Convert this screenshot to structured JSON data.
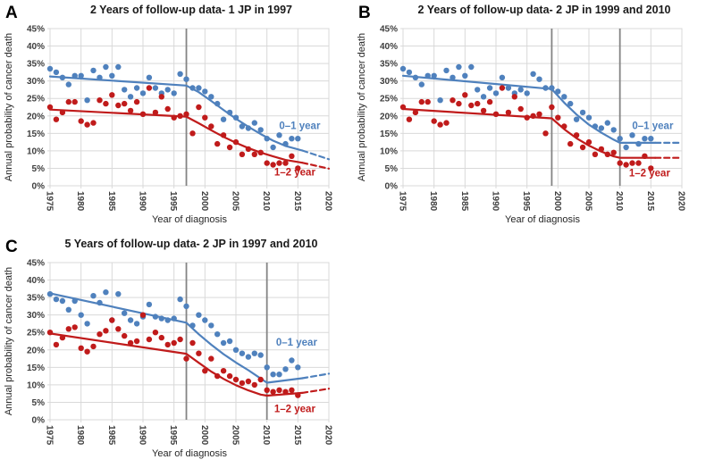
{
  "figure": {
    "y_axis_label": "Annual probability of cancer death",
    "x_axis_label": "Year of diagnosis"
  },
  "colors": {
    "blue": "#4f81bd",
    "red": "#c01b1b",
    "grid": "#d9d9d9",
    "joinpoint": "#848484",
    "tick_text": "#3d3d3d"
  },
  "chart_data": [
    {
      "type": "scatter",
      "panel": "A",
      "title": "2 Years of follow-up data- 1 JP in 1997",
      "xlabel": "Year of diagnosis",
      "ylabel": "Annual probability of cancer death",
      "xlim": [
        1975,
        2020
      ],
      "ylim": [
        0,
        45
      ],
      "x_ticks": [
        1975,
        1980,
        1985,
        1990,
        1995,
        2000,
        2005,
        2010,
        2015,
        2020
      ],
      "y_ticks": {
        "values": [
          45,
          40,
          35,
          30,
          25,
          20,
          15,
          10,
          5,
          0
        ],
        "labels": [
          "45%",
          "40%",
          "35%",
          "30%",
          "25%",
          "20%",
          "15%",
          "10%",
          "5%",
          "0%"
        ]
      },
      "joinpoint_years": [
        1997
      ],
      "years": [
        1975,
        1976,
        1977,
        1978,
        1979,
        1980,
        1981,
        1982,
        1983,
        1984,
        1985,
        1986,
        1987,
        1988,
        1989,
        1990,
        1991,
        1992,
        1993,
        1994,
        1995,
        1996,
        1997,
        1998,
        1999,
        2000,
        2001,
        2002,
        2003,
        2004,
        2005,
        2006,
        2007,
        2008,
        2009,
        2010,
        2011,
        2012,
        2013,
        2014,
        2015
      ],
      "series": [
        {
          "name": "0–1 year",
          "color_key": "blue",
          "values": [
            33.5,
            32.5,
            31,
            29,
            31.5,
            31.5,
            24.5,
            33,
            31,
            34,
            31.5,
            34,
            27.5,
            25.5,
            28,
            26.5,
            31,
            28,
            26.5,
            27.5,
            26.5,
            32,
            30.5,
            28,
            28,
            27,
            25.5,
            23.5,
            19,
            21,
            19.5,
            17,
            16.5,
            18,
            16,
            13.5,
            11,
            14.5,
            12,
            13.5,
            13.5
          ]
        },
        {
          "name": "1–2 year",
          "color_key": "red",
          "values": [
            22.5,
            19,
            21,
            24,
            24,
            18.5,
            17.5,
            18,
            24.5,
            23.5,
            26,
            23,
            23.5,
            21.5,
            24,
            20.5,
            28,
            21,
            25.5,
            22,
            19.5,
            20,
            20.5,
            15,
            22.5,
            19.5,
            17,
            12,
            14.5,
            11,
            12.5,
            9,
            10.5,
            9,
            9.5,
            6.5,
            6,
            6.5,
            6.5,
            8.5,
            5
          ]
        }
      ],
      "trend_segments": [
        {
          "series": "0–1 year",
          "color_key": "blue",
          "style": "solid",
          "points": [
            [
              1975,
              31.3
            ],
            [
              1997,
              28.7
            ],
            [
              1999,
              26.8
            ],
            [
              2001,
              24.3
            ],
            [
              2003,
              21.7
            ],
            [
              2005,
              19.2
            ],
            [
              2007,
              16.9
            ],
            [
              2009,
              14.8
            ],
            [
              2011,
              12.9
            ],
            [
              2013,
              11.4
            ],
            [
              2015.7,
              10.1
            ]
          ]
        },
        {
          "series": "0–1 year",
          "color_key": "blue",
          "style": "dashed",
          "points": [
            [
              2015.7,
              10.1
            ],
            [
              2020,
              7.6
            ]
          ]
        },
        {
          "series": "1–2 year",
          "color_key": "red",
          "style": "solid",
          "points": [
            [
              1975,
              21.8
            ],
            [
              1997,
              19.8
            ],
            [
              1999,
              17.9
            ],
            [
              2001,
              15.9
            ],
            [
              2003,
              14.0
            ],
            [
              2005,
              12.3
            ],
            [
              2007,
              10.8
            ],
            [
              2009,
              9.5
            ],
            [
              2011,
              8.4
            ],
            [
              2013,
              7.4
            ],
            [
              2015.7,
              6.6
            ]
          ]
        },
        {
          "series": "1–2 year",
          "color_key": "red",
          "style": "dashed",
          "points": [
            [
              2015.7,
              6.6
            ],
            [
              2020,
              4.9
            ]
          ]
        }
      ],
      "annotations": [
        {
          "text": "0–1 year",
          "year": 2015.3,
          "value": 16.2,
          "color_key": "blue"
        },
        {
          "text": "1–2 year",
          "year": 2014.5,
          "value": 2.9,
          "color_key": "red"
        }
      ]
    },
    {
      "type": "scatter",
      "panel": "B",
      "title": "2 Years of follow-up data- 2 JP in 1999 and 2010",
      "xlabel": "Year of diagnosis",
      "ylabel": "Annual probability of cancer death",
      "xlim": [
        1975,
        2020
      ],
      "ylim": [
        0,
        45
      ],
      "x_ticks": [
        1975,
        1980,
        1985,
        1990,
        1995,
        2000,
        2005,
        2010,
        2015,
        2020
      ],
      "y_ticks": {
        "values": [
          45,
          40,
          35,
          30,
          25,
          20,
          15,
          10,
          5,
          0
        ],
        "labels": [
          "45%",
          "40%",
          "35%",
          "30%",
          "25%",
          "20%",
          "15%",
          "10%",
          "5%",
          "0%"
        ]
      },
      "joinpoint_years": [
        1999,
        2010
      ],
      "years": [
        1975,
        1976,
        1977,
        1978,
        1979,
        1980,
        1981,
        1982,
        1983,
        1984,
        1985,
        1986,
        1987,
        1988,
        1989,
        1990,
        1991,
        1992,
        1993,
        1994,
        1995,
        1996,
        1997,
        1998,
        1999,
        2000,
        2001,
        2002,
        2003,
        2004,
        2005,
        2006,
        2007,
        2008,
        2009,
        2010,
        2011,
        2012,
        2013,
        2014,
        2015
      ],
      "series": [
        {
          "name": "0–1 year",
          "color_key": "blue",
          "values": [
            33.5,
            32.5,
            31,
            29,
            31.5,
            31.5,
            24.5,
            33,
            31,
            34,
            31.5,
            34,
            27.5,
            25.5,
            28,
            26.5,
            31,
            28,
            26.5,
            27.5,
            26.5,
            32,
            30.5,
            28,
            28,
            27,
            25.5,
            23.5,
            19,
            21,
            19.5,
            17,
            16.5,
            18,
            16,
            13.5,
            11,
            14.5,
            12,
            13.5,
            13.5
          ]
        },
        {
          "name": "1–2 year",
          "color_key": "red",
          "values": [
            22.5,
            19,
            21,
            24,
            24,
            18.5,
            17.5,
            18,
            24.5,
            23.5,
            26,
            23,
            23.5,
            21.5,
            24,
            20.5,
            28,
            21,
            25.5,
            22,
            19.5,
            20,
            20.5,
            15,
            22.5,
            19.5,
            17,
            12,
            14.5,
            11,
            12.5,
            9,
            10.5,
            9,
            9.5,
            6.5,
            6,
            6.5,
            6.5,
            8.5,
            5
          ]
        }
      ],
      "trend_segments": [
        {
          "series": "0–1 year",
          "color_key": "blue",
          "style": "solid",
          "points": [
            [
              1975,
              31.5
            ],
            [
              1999,
              27.7
            ],
            [
              2001,
              23.8
            ],
            [
              2003,
              20.4
            ],
            [
              2005,
              17.5
            ],
            [
              2007,
              15.2
            ],
            [
              2009,
              13.2
            ],
            [
              2010,
              12.3
            ],
            [
              2015.7,
              12.3
            ]
          ]
        },
        {
          "series": "0–1 year",
          "color_key": "blue",
          "style": "dashed",
          "points": [
            [
              2015.7,
              12.3
            ],
            [
              2020,
              12.3
            ]
          ]
        },
        {
          "series": "1–2 year",
          "color_key": "red",
          "style": "solid",
          "points": [
            [
              1975,
              22.0
            ],
            [
              1999,
              19.3
            ],
            [
              2001,
              16.2
            ],
            [
              2003,
              13.6
            ],
            [
              2005,
              11.5
            ],
            [
              2007,
              9.8
            ],
            [
              2009,
              8.4
            ],
            [
              2010,
              8.0
            ],
            [
              2015.7,
              8.0
            ]
          ]
        },
        {
          "series": "1–2 year",
          "color_key": "red",
          "style": "dashed",
          "points": [
            [
              2015.7,
              8.0
            ],
            [
              2020,
              8.0
            ]
          ]
        }
      ],
      "annotations": [
        {
          "text": "0–1 year",
          "year": 2015.3,
          "value": 16.2,
          "color_key": "blue"
        },
        {
          "text": "1–2 year",
          "year": 2014.8,
          "value": 2.7,
          "color_key": "red"
        }
      ]
    },
    {
      "type": "scatter",
      "panel": "C",
      "title": "5 Years of follow-up data- 2 JP in 1997 and 2010",
      "xlabel": "Year of diagnosis",
      "ylabel": "Annual probability of cancer death",
      "xlim": [
        1975,
        2020
      ],
      "ylim": [
        0,
        45
      ],
      "x_ticks": [
        1975,
        1980,
        1985,
        1990,
        1995,
        2000,
        2005,
        2010,
        2015,
        2020
      ],
      "y_ticks": {
        "values": [
          45,
          40,
          35,
          30,
          25,
          20,
          15,
          10,
          5,
          0
        ],
        "labels": [
          "45%",
          "40%",
          "35%",
          "30%",
          "25%",
          "20%",
          "15%",
          "10%",
          "5%",
          "0%"
        ]
      },
      "joinpoint_years": [
        1997,
        2010
      ],
      "years": [
        1975,
        1976,
        1977,
        1978,
        1979,
        1980,
        1981,
        1982,
        1983,
        1984,
        1985,
        1986,
        1987,
        1988,
        1989,
        1990,
        1991,
        1992,
        1993,
        1994,
        1995,
        1996,
        1997,
        1998,
        1999,
        2000,
        2001,
        2002,
        2003,
        2004,
        2005,
        2006,
        2007,
        2008,
        2009,
        2010,
        2011,
        2012,
        2013,
        2014,
        2015
      ],
      "series": [
        {
          "name": "0–1 year",
          "color_key": "blue",
          "values": [
            36,
            34.5,
            34,
            31.5,
            34,
            30,
            27.5,
            35.5,
            33.5,
            36.5,
            28.5,
            36,
            30.5,
            28.5,
            27.5,
            29.5,
            33,
            29.5,
            29,
            28.5,
            29,
            34.5,
            32.5,
            27,
            30,
            28.5,
            27,
            24.5,
            22,
            22.5,
            20,
            19,
            18,
            19,
            18.5,
            15,
            13,
            13,
            14.5,
            17,
            15
          ]
        },
        {
          "name": "1–2 year",
          "color_key": "red",
          "values": [
            25,
            21.5,
            23.5,
            26,
            26.5,
            20.5,
            19.5,
            21,
            24.5,
            25.5,
            28.5,
            26,
            24,
            22,
            22.5,
            30,
            23,
            25,
            23.5,
            21.5,
            22,
            23,
            17.5,
            22,
            19,
            14,
            17.5,
            12.5,
            14,
            12.5,
            11.5,
            10.5,
            11,
            10,
            11.5,
            8.5,
            8,
            8.5,
            8,
            8.5,
            7
          ]
        }
      ],
      "trend_segments": [
        {
          "series": "0–1 year",
          "color_key": "blue",
          "style": "solid",
          "points": [
            [
              1975,
              36.2
            ],
            [
              1997,
              27.8
            ],
            [
              1999,
              24.5
            ],
            [
              2001,
              21.5
            ],
            [
              2003,
              18.8
            ],
            [
              2005,
              16.4
            ],
            [
              2007,
              14.2
            ],
            [
              2009,
              11.8
            ],
            [
              2010,
              10.6
            ],
            [
              2015.7,
              11.9
            ]
          ]
        },
        {
          "series": "0–1 year",
          "color_key": "blue",
          "style": "dashed",
          "points": [
            [
              2015.7,
              11.9
            ],
            [
              2020,
              13.2
            ]
          ]
        },
        {
          "series": "1–2 year",
          "color_key": "red",
          "style": "solid",
          "points": [
            [
              1975,
              24.7
            ],
            [
              1997,
              18.9
            ],
            [
              1999,
              16.3
            ],
            [
              2001,
              13.8
            ],
            [
              2003,
              11.7
            ],
            [
              2005,
              9.9
            ],
            [
              2007,
              8.4
            ],
            [
              2009,
              7.2
            ],
            [
              2010,
              6.9
            ],
            [
              2015.7,
              7.7
            ]
          ]
        },
        {
          "series": "1–2 year",
          "color_key": "red",
          "style": "dashed",
          "points": [
            [
              2015.7,
              7.7
            ],
            [
              2020,
              8.9
            ]
          ]
        }
      ],
      "annotations": [
        {
          "text": "0–1 year",
          "year": 2014.8,
          "value": 21.2,
          "color_key": "blue"
        },
        {
          "text": "1–2 year",
          "year": 2014.5,
          "value": 2.2,
          "color_key": "red"
        }
      ]
    }
  ]
}
